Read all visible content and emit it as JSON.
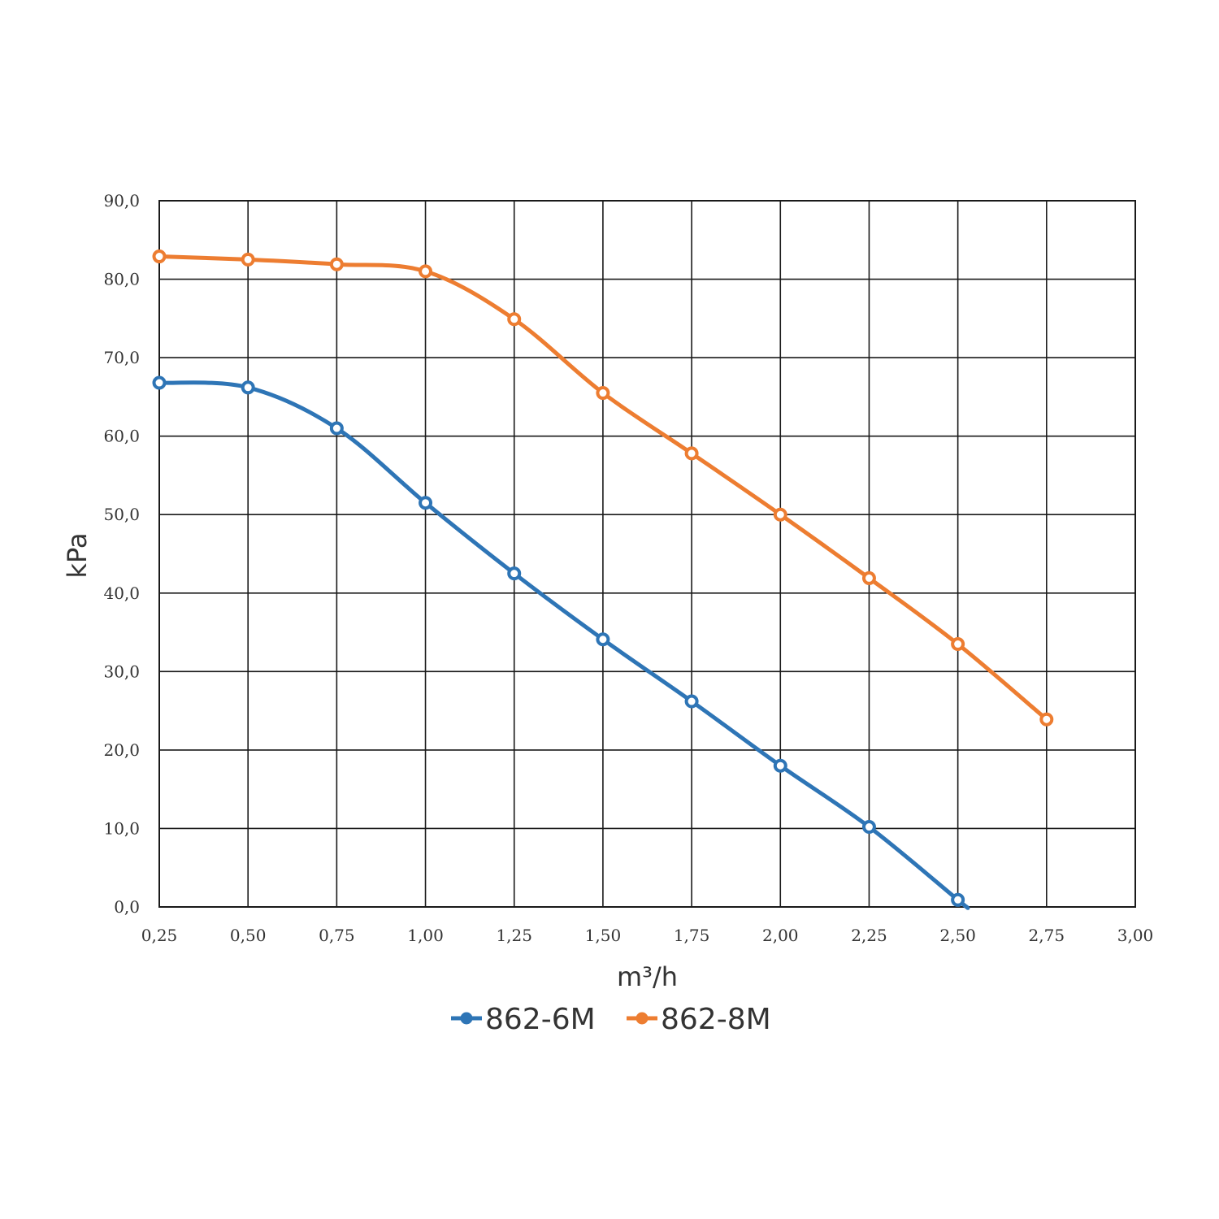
{
  "chart_data": {
    "type": "line",
    "title": "",
    "xlabel": "m³/h",
    "ylabel": "kPa",
    "x": [
      0.25,
      0.5,
      0.75,
      1.0,
      1.25,
      1.5,
      1.75,
      2.0,
      2.25,
      2.5,
      2.75
    ],
    "xlim": [
      0.25,
      3.0
    ],
    "ylim": [
      0,
      90
    ],
    "x_ticks": [
      0.25,
      0.5,
      0.75,
      1.0,
      1.25,
      1.5,
      1.75,
      2.0,
      2.25,
      2.5,
      2.75,
      3.0
    ],
    "x_tick_labels": [
      "0,25",
      "0,50",
      "0,75",
      "1,00",
      "1,25",
      "1,50",
      "1,75",
      "2,00",
      "2,25",
      "2,50",
      "2,75",
      "3,00"
    ],
    "y_ticks": [
      0,
      10,
      20,
      30,
      40,
      50,
      60,
      70,
      80,
      90
    ],
    "y_tick_labels": [
      "0,0",
      "10,0",
      "20,0",
      "30,0",
      "40,0",
      "50,0",
      "60,0",
      "70,0",
      "80,0",
      "90,0"
    ],
    "grid": true,
    "legend_position": "bottom",
    "series": [
      {
        "name": "862-6M",
        "color": "#2e75b6",
        "x": [
          0.25,
          0.5,
          0.75,
          1.0,
          1.25,
          1.5,
          1.75,
          2.0,
          2.25,
          2.5
        ],
        "values": [
          66.8,
          66.2,
          61.0,
          51.5,
          42.5,
          34.1,
          26.2,
          18.0,
          10.2,
          0.9
        ],
        "line_end": [
          2.525,
          0.0
        ]
      },
      {
        "name": "862-8M",
        "color": "#ed7d31",
        "x": [
          0.25,
          0.5,
          0.75,
          1.0,
          1.25,
          1.5,
          1.75,
          2.0,
          2.25,
          2.5,
          2.75
        ],
        "values": [
          82.9,
          82.5,
          81.9,
          81.0,
          74.9,
          65.5,
          57.8,
          50.0,
          41.9,
          33.5,
          23.9
        ]
      }
    ]
  }
}
